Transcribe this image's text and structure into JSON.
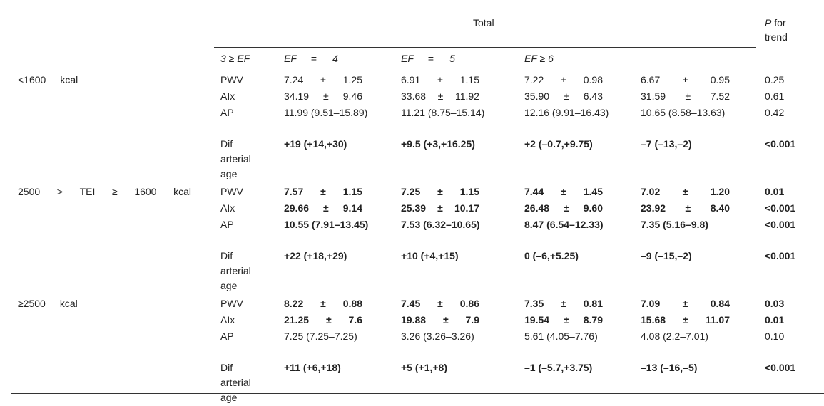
{
  "header": {
    "total": "Total",
    "p_for_trend_italic": "P",
    "p_for_trend_rest": " for trend",
    "ef_cols": [
      {
        "a": "3 ≥ EF"
      },
      {
        "a": "EF",
        "b": "=",
        "c": "4"
      },
      {
        "a": "EF",
        "b": "=",
        "c": "5"
      },
      {
        "a": "EF ≥ 6"
      }
    ]
  },
  "rows": [
    {
      "group": [
        "<1600",
        "kcal"
      ],
      "bold": false,
      "items": [
        {
          "label": "PWV",
          "vals": [
            [
              "7.24",
              "±",
              "1.25"
            ],
            [
              "6.91",
              "±",
              "1.15"
            ],
            [
              "7.22",
              "±",
              "0.98"
            ],
            [
              "6.67",
              "±",
              "0.95"
            ]
          ],
          "p": "0.25",
          "bold": false
        },
        {
          "label": "AIx",
          "vals": [
            [
              "34.19",
              "±",
              "9.46"
            ],
            [
              "33.68",
              "±",
              "11.92"
            ],
            [
              "35.90",
              "±",
              "6.43"
            ],
            [
              "31.59",
              "±",
              "7.52"
            ]
          ],
          "p": "0.61",
          "bold": false
        },
        {
          "label": "AP",
          "vals": [
            "11.99 (9.51–15.89)",
            "11.21 (8.75–15.14)",
            "12.16 (9.91–16.43)",
            "10.65 (8.58–13.63)"
          ],
          "p": "0.42",
          "bold": false
        },
        {
          "label": "Dif arterial age",
          "vals": [
            "+19 (+14,+30)",
            "+9.5 (+3,+16.25)",
            "+2 (–0.7,+9.75)",
            "–7 (–13,–2)"
          ],
          "p": "<0.001",
          "bold": true
        }
      ]
    },
    {
      "group": [
        "2500",
        ">",
        "TEI",
        "≥",
        "1600",
        "kcal"
      ],
      "items": [
        {
          "label": "PWV",
          "vals": [
            [
              "7.57",
              "±",
              "1.15"
            ],
            [
              "7.25",
              "±",
              "1.15"
            ],
            [
              "7.44",
              "±",
              "1.45"
            ],
            [
              "7.02",
              "±",
              "1.20"
            ]
          ],
          "p": "0.01",
          "bold": true
        },
        {
          "label": "AIx",
          "vals": [
            [
              "29.66",
              "±",
              "9.14"
            ],
            [
              "25.39",
              "±",
              "10.17"
            ],
            [
              "26.48",
              "±",
              "9.60"
            ],
            [
              "23.92",
              "±",
              "8.40"
            ]
          ],
          "p": "<0.001",
          "bold": true
        },
        {
          "label": "AP",
          "vals": [
            "10.55 (7.91–13.45)",
            "7.53 (6.32–10.65)",
            "8.47 (6.54–12.33)",
            "7.35 (5.16–9.8)"
          ],
          "p": "<0.001",
          "bold": true
        },
        {
          "label": "Dif arterial age",
          "vals": [
            "+22 (+18,+29)",
            "+10 (+4,+15)",
            "0 (–6,+5.25)",
            "–9 (–15,–2)"
          ],
          "p": "<0.001",
          "bold": true
        }
      ]
    },
    {
      "group": [
        "≥2500",
        "kcal"
      ],
      "items": [
        {
          "label": "PWV",
          "vals": [
            [
              "8.22",
              "±",
              "0.88"
            ],
            [
              "7.45",
              "±",
              "0.86"
            ],
            [
              "7.35",
              "±",
              "0.81"
            ],
            [
              "7.09",
              "±",
              "0.84"
            ]
          ],
          "p": "0.03",
          "bold": true
        },
        {
          "label": "AIx",
          "vals": [
            [
              "21.25",
              "±",
              "7.6"
            ],
            [
              "19.88",
              "±",
              "7.9"
            ],
            [
              "19.54",
              "±",
              "8.79"
            ],
            [
              "15.68",
              "±",
              "11.07"
            ]
          ],
          "p": "0.01",
          "bold": true
        },
        {
          "label": "AP",
          "vals": [
            "7.25 (7.25–7.25)",
            "3.26 (3.26–3.26)",
            "5.61 (4.05–7.76)",
            "4.08 (2.2–7.01)"
          ],
          "p": "0.10",
          "bold": false
        },
        {
          "label": "Dif arterial age",
          "vals": [
            "+11 (+6,+18)",
            "+5 (+1,+8)",
            "–1 (–5.7,+3.75)",
            "–13 (–16,–5)"
          ],
          "p": "<0.001",
          "bold": true
        }
      ]
    }
  ]
}
